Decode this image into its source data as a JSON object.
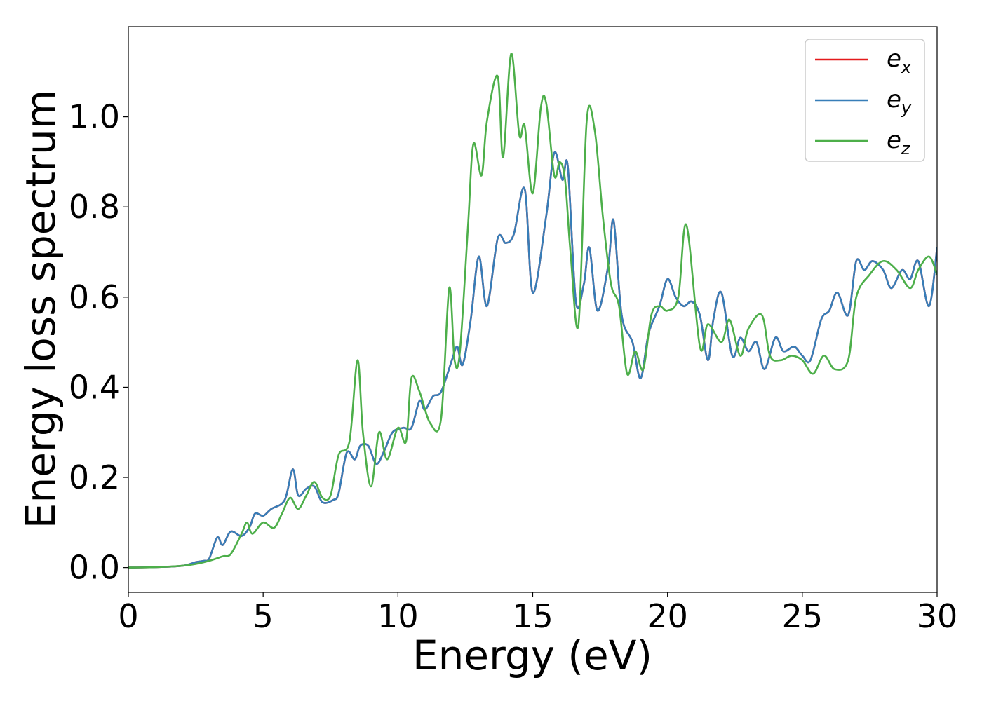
{
  "chart_data": {
    "type": "line",
    "xlabel": "Energy (eV)",
    "ylabel": "Energy loss spectrum",
    "xlim": [
      0,
      30
    ],
    "ylim": [
      -0.055,
      1.2
    ],
    "xticks": [
      0,
      5,
      10,
      15,
      20,
      25,
      30
    ],
    "xtick_labels": [
      "0",
      "5",
      "10",
      "15",
      "20",
      "25",
      "30"
    ],
    "yticks": [
      0.0,
      0.2,
      0.4,
      0.6,
      0.8,
      1.0
    ],
    "ytick_labels": [
      "0.0",
      "0.2",
      "0.4",
      "0.6",
      "0.8",
      "1.0"
    ],
    "grid": false,
    "legend_position": "top-right",
    "series": [
      {
        "name": "e_x",
        "legend_main": "e",
        "legend_sub": "x",
        "color": "#e41a1c",
        "x": [
          0,
          1,
          2,
          2.5,
          2.8,
          3,
          3.3,
          3.5,
          3.8,
          4.2,
          4.5,
          4.7,
          5,
          5.3,
          5.8,
          6.1,
          6.3,
          6.6,
          6.9,
          7.2,
          7.6,
          7.8,
          8.1,
          8.4,
          8.6,
          8.9,
          9.2,
          9.5,
          9.8,
          10.2,
          10.5,
          10.8,
          11,
          11.3,
          11.6,
          12,
          12.2,
          12.4,
          12.7,
          13,
          13.3,
          13.7,
          14,
          14.3,
          14.7,
          15,
          15.5,
          15.8,
          16.1,
          16.3,
          16.6,
          16.9,
          17.1,
          17.4,
          17.8,
          18,
          18.3,
          18.7,
          19,
          19.3,
          19.7,
          20,
          20.3,
          20.6,
          20.9,
          21.2,
          21.5,
          21.7,
          22,
          22.4,
          22.7,
          23,
          23.3,
          23.6,
          24,
          24.3,
          24.7,
          25,
          25.3,
          25.7,
          26,
          26.3,
          26.7,
          27,
          27.3,
          27.6,
          28,
          28.3,
          28.7,
          29,
          29.3,
          29.7,
          30
        ],
        "y": [
          0,
          0.001,
          0.004,
          0.012,
          0.015,
          0.02,
          0.067,
          0.05,
          0.08,
          0.07,
          0.09,
          0.12,
          0.115,
          0.13,
          0.15,
          0.218,
          0.16,
          0.175,
          0.18,
          0.145,
          0.15,
          0.165,
          0.255,
          0.24,
          0.27,
          0.27,
          0.23,
          0.26,
          0.3,
          0.31,
          0.31,
          0.37,
          0.35,
          0.38,
          0.39,
          0.46,
          0.49,
          0.45,
          0.55,
          0.69,
          0.58,
          0.73,
          0.72,
          0.74,
          0.84,
          0.61,
          0.78,
          0.92,
          0.86,
          0.89,
          0.59,
          0.63,
          0.71,
          0.57,
          0.67,
          0.77,
          0.56,
          0.5,
          0.42,
          0.52,
          0.58,
          0.64,
          0.6,
          0.58,
          0.59,
          0.56,
          0.46,
          0.55,
          0.61,
          0.47,
          0.51,
          0.48,
          0.5,
          0.44,
          0.51,
          0.48,
          0.49,
          0.47,
          0.46,
          0.55,
          0.57,
          0.61,
          0.56,
          0.68,
          0.66,
          0.68,
          0.66,
          0.62,
          0.66,
          0.64,
          0.68,
          0.58,
          0.71
        ]
      },
      {
        "name": "e_y",
        "legend_main": "e",
        "legend_sub": "y",
        "color": "#377eb8",
        "x": [
          0,
          1,
          2,
          2.5,
          2.8,
          3,
          3.3,
          3.5,
          3.8,
          4.2,
          4.5,
          4.7,
          5,
          5.3,
          5.8,
          6.1,
          6.3,
          6.6,
          6.9,
          7.2,
          7.6,
          7.8,
          8.1,
          8.4,
          8.6,
          8.9,
          9.2,
          9.5,
          9.8,
          10.2,
          10.5,
          10.8,
          11,
          11.3,
          11.6,
          12,
          12.2,
          12.4,
          12.7,
          13,
          13.3,
          13.7,
          14,
          14.3,
          14.7,
          15,
          15.5,
          15.8,
          16.1,
          16.3,
          16.6,
          16.9,
          17.1,
          17.4,
          17.8,
          18,
          18.3,
          18.7,
          19,
          19.3,
          19.7,
          20,
          20.3,
          20.6,
          20.9,
          21.2,
          21.5,
          21.7,
          22,
          22.4,
          22.7,
          23,
          23.3,
          23.6,
          24,
          24.3,
          24.7,
          25,
          25.3,
          25.7,
          26,
          26.3,
          26.7,
          27,
          27.3,
          27.6,
          28,
          28.3,
          28.7,
          29,
          29.3,
          29.7,
          30
        ],
        "y": [
          0,
          0.001,
          0.004,
          0.012,
          0.015,
          0.02,
          0.067,
          0.05,
          0.08,
          0.07,
          0.09,
          0.12,
          0.115,
          0.13,
          0.15,
          0.218,
          0.16,
          0.175,
          0.18,
          0.145,
          0.15,
          0.165,
          0.255,
          0.24,
          0.27,
          0.27,
          0.23,
          0.26,
          0.3,
          0.31,
          0.31,
          0.37,
          0.35,
          0.38,
          0.39,
          0.46,
          0.49,
          0.45,
          0.55,
          0.69,
          0.58,
          0.73,
          0.72,
          0.74,
          0.84,
          0.61,
          0.78,
          0.92,
          0.86,
          0.89,
          0.59,
          0.63,
          0.71,
          0.57,
          0.67,
          0.77,
          0.56,
          0.5,
          0.42,
          0.52,
          0.58,
          0.64,
          0.6,
          0.58,
          0.59,
          0.56,
          0.46,
          0.55,
          0.61,
          0.47,
          0.51,
          0.48,
          0.5,
          0.44,
          0.51,
          0.48,
          0.49,
          0.47,
          0.46,
          0.55,
          0.57,
          0.61,
          0.56,
          0.68,
          0.66,
          0.68,
          0.66,
          0.62,
          0.66,
          0.64,
          0.68,
          0.58,
          0.71
        ]
      },
      {
        "name": "e_z",
        "legend_main": "e",
        "legend_sub": "z",
        "color": "#4daf4a",
        "x": [
          0,
          1,
          2,
          2.5,
          3,
          3.5,
          3.8,
          4.2,
          4.4,
          4.6,
          5,
          5.4,
          5.7,
          6,
          6.3,
          6.6,
          6.9,
          7.2,
          7.5,
          7.8,
          8.2,
          8.5,
          8.7,
          9,
          9.3,
          9.6,
          10,
          10.3,
          10.5,
          10.8,
          11.2,
          11.6,
          11.9,
          12.1,
          12.3,
          12.6,
          12.8,
          13.1,
          13.3,
          13.7,
          13.9,
          14.2,
          14.5,
          14.7,
          15,
          15.3,
          15.5,
          15.8,
          16,
          16.2,
          16.4,
          16.7,
          17,
          17.3,
          17.6,
          17.9,
          18.2,
          18.5,
          18.8,
          19.1,
          19.4,
          19.7,
          20,
          20.4,
          20.7,
          21.2,
          21.5,
          22,
          22.3,
          22.7,
          23,
          23.5,
          23.8,
          24.2,
          24.6,
          25,
          25.4,
          25.8,
          26.2,
          26.7,
          27,
          27.5,
          28,
          28.5,
          29,
          29.3,
          29.7,
          30
        ],
        "y": [
          0,
          0.001,
          0.004,
          0.008,
          0.015,
          0.025,
          0.03,
          0.075,
          0.1,
          0.075,
          0.1,
          0.088,
          0.12,
          0.155,
          0.13,
          0.16,
          0.19,
          0.155,
          0.16,
          0.25,
          0.28,
          0.46,
          0.3,
          0.18,
          0.3,
          0.24,
          0.31,
          0.28,
          0.42,
          0.39,
          0.32,
          0.33,
          0.62,
          0.46,
          0.48,
          0.76,
          0.94,
          0.87,
          0.99,
          1.09,
          0.91,
          1.14,
          0.96,
          0.98,
          0.83,
          1.02,
          1.03,
          0.87,
          0.9,
          0.86,
          0.7,
          0.54,
          0.99,
          0.97,
          0.78,
          0.63,
          0.58,
          0.43,
          0.48,
          0.44,
          0.56,
          0.58,
          0.57,
          0.6,
          0.76,
          0.49,
          0.54,
          0.5,
          0.55,
          0.47,
          0.53,
          0.56,
          0.47,
          0.46,
          0.47,
          0.46,
          0.43,
          0.47,
          0.44,
          0.46,
          0.6,
          0.65,
          0.68,
          0.66,
          0.62,
          0.66,
          0.69,
          0.65
        ]
      }
    ]
  }
}
